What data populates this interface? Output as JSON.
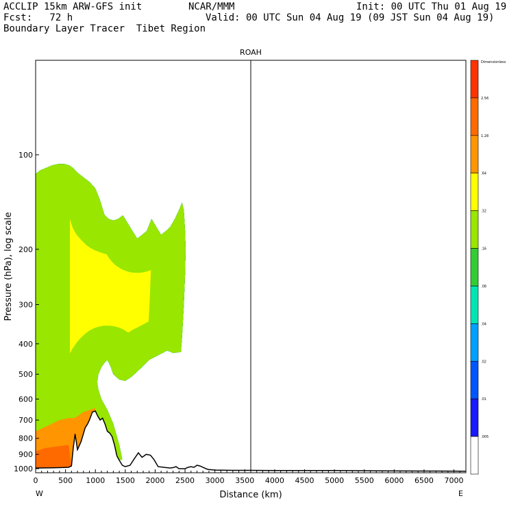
{
  "header": {
    "line1_left": "ACCLIP 15km ARW-GFS init",
    "line1_mid": "NCAR/MMM",
    "line1_right": "Init: 00 UTC Thu 01 Aug 19",
    "line2_left": "Fcst:   72 h",
    "line2_right": "Valid: 00 UTC Sun 04 Aug 19 (09 JST Sun 04 Aug 19)",
    "line3_left": "Boundary Layer Tracer  Tibet Region"
  },
  "chart_data": {
    "type": "area",
    "title": "ROAH",
    "xlabel": "Distance (km)",
    "ylabel": "Pressure (hPa), log scale",
    "y_scale": "log",
    "x_range": [
      0,
      7200
    ],
    "y_range": [
      1030,
      50
    ],
    "x_ticks": [
      0,
      500,
      1000,
      1500,
      2000,
      2500,
      3000,
      3500,
      4000,
      4500,
      5000,
      5500,
      6000,
      6500,
      7000
    ],
    "y_ticks": [
      100,
      200,
      300,
      400,
      500,
      600,
      700,
      800,
      900,
      1000
    ],
    "x_end_labels": {
      "left": "W",
      "right": "E"
    },
    "marker_line_x": 3600,
    "colorbar": {
      "label_top": "Dimensionless",
      "levels": [
        "2.56",
        "1.28",
        ".64",
        ".32",
        ".16",
        ".08",
        ".04",
        ".02",
        ".01",
        ".005"
      ],
      "colors": [
        "#ff3300",
        "#ff6a00",
        "#ff9500",
        "#ffff00",
        "#99e600",
        "#33cc33",
        "#00e6b3",
        "#00a0ff",
        "#0055ff",
        "#1a1aff",
        "#ffffff"
      ]
    },
    "terrain": [
      [
        0,
        995
      ],
      [
        300,
        993
      ],
      [
        550,
        990
      ],
      [
        600,
        980
      ],
      [
        630,
        860
      ],
      [
        660,
        775
      ],
      [
        700,
        870
      ],
      [
        760,
        820
      ],
      [
        830,
        740
      ],
      [
        870,
        720
      ],
      [
        900,
        700
      ],
      [
        950,
        660
      ],
      [
        1000,
        655
      ],
      [
        1040,
        680
      ],
      [
        1080,
        700
      ],
      [
        1120,
        690
      ],
      [
        1160,
        720
      ],
      [
        1200,
        760
      ],
      [
        1240,
        770
      ],
      [
        1280,
        790
      ],
      [
        1320,
        840
      ],
      [
        1360,
        910
      ],
      [
        1400,
        940
      ],
      [
        1450,
        975
      ],
      [
        1500,
        985
      ],
      [
        1580,
        975
      ],
      [
        1650,
        930
      ],
      [
        1720,
        890
      ],
      [
        1780,
        920
      ],
      [
        1850,
        900
      ],
      [
        1920,
        905
      ],
      [
        1980,
        935
      ],
      [
        2050,
        985
      ],
      [
        2150,
        990
      ],
      [
        2250,
        995
      ],
      [
        2300,
        992
      ],
      [
        2350,
        985
      ],
      [
        2400,
        1000
      ],
      [
        2500,
        1000
      ],
      [
        2550,
        990
      ],
      [
        2600,
        985
      ],
      [
        2650,
        990
      ],
      [
        2700,
        975
      ],
      [
        2750,
        980
      ],
      [
        2800,
        990
      ],
      [
        2880,
        1005
      ],
      [
        3000,
        1010
      ],
      [
        3300,
        1012
      ],
      [
        3600,
        1012
      ],
      [
        4000,
        1013
      ],
      [
        5000,
        1013
      ],
      [
        5800,
        1016
      ],
      [
        6500,
        1017
      ],
      [
        7200,
        1018
      ]
    ],
    "tracer_region_outer": [
      [
        0,
        995
      ],
      [
        0,
        115
      ],
      [
        80,
        112
      ],
      [
        180,
        110
      ],
      [
        280,
        108
      ],
      [
        380,
        107
      ],
      [
        480,
        107
      ],
      [
        560,
        108
      ],
      [
        620,
        110
      ],
      [
        700,
        114
      ],
      [
        800,
        118
      ],
      [
        900,
        122
      ],
      [
        1000,
        128
      ],
      [
        1080,
        140
      ],
      [
        1150,
        155
      ],
      [
        1220,
        160
      ],
      [
        1300,
        162
      ],
      [
        1380,
        160
      ],
      [
        1460,
        156
      ],
      [
        1540,
        165
      ],
      [
        1620,
        175
      ],
      [
        1700,
        185
      ],
      [
        1780,
        180
      ],
      [
        1860,
        175
      ],
      [
        1940,
        160
      ],
      [
        2020,
        170
      ],
      [
        2100,
        180
      ],
      [
        2180,
        175
      ],
      [
        2250,
        170
      ],
      [
        2330,
        160
      ],
      [
        2400,
        150
      ],
      [
        2450,
        142
      ],
      [
        2480,
        150
      ],
      [
        2500,
        175
      ],
      [
        2510,
        200
      ],
      [
        2500,
        240
      ],
      [
        2480,
        300
      ],
      [
        2450,
        380
      ],
      [
        2430,
        425
      ],
      [
        2300,
        428
      ],
      [
        2200,
        420
      ],
      [
        2100,
        430
      ],
      [
        2000,
        440
      ],
      [
        1900,
        450
      ],
      [
        1800,
        470
      ],
      [
        1700,
        490
      ],
      [
        1600,
        510
      ],
      [
        1500,
        525
      ],
      [
        1400,
        520
      ],
      [
        1300,
        500
      ],
      [
        1250,
        470
      ],
      [
        1200,
        450
      ],
      [
        1150,
        460
      ],
      [
        1100,
        475
      ],
      [
        1050,
        500
      ],
      [
        1030,
        530
      ],
      [
        1050,
        560
      ],
      [
        1100,
        600
      ],
      [
        1200,
        650
      ],
      [
        1300,
        720
      ],
      [
        1400,
        840
      ],
      [
        1450,
        935
      ],
      [
        1400,
        940
      ],
      [
        1360,
        910
      ],
      [
        1320,
        840
      ],
      [
        1280,
        790
      ],
      [
        1240,
        770
      ],
      [
        1200,
        760
      ],
      [
        1160,
        720
      ],
      [
        1120,
        690
      ],
      [
        1080,
        700
      ],
      [
        1040,
        680
      ],
      [
        1000,
        655
      ],
      [
        950,
        660
      ],
      [
        900,
        700
      ],
      [
        870,
        720
      ],
      [
        830,
        740
      ],
      [
        760,
        820
      ],
      [
        700,
        870
      ],
      [
        660,
        775
      ],
      [
        630,
        860
      ],
      [
        600,
        980
      ],
      [
        550,
        990
      ],
      [
        300,
        993
      ]
    ]
  }
}
